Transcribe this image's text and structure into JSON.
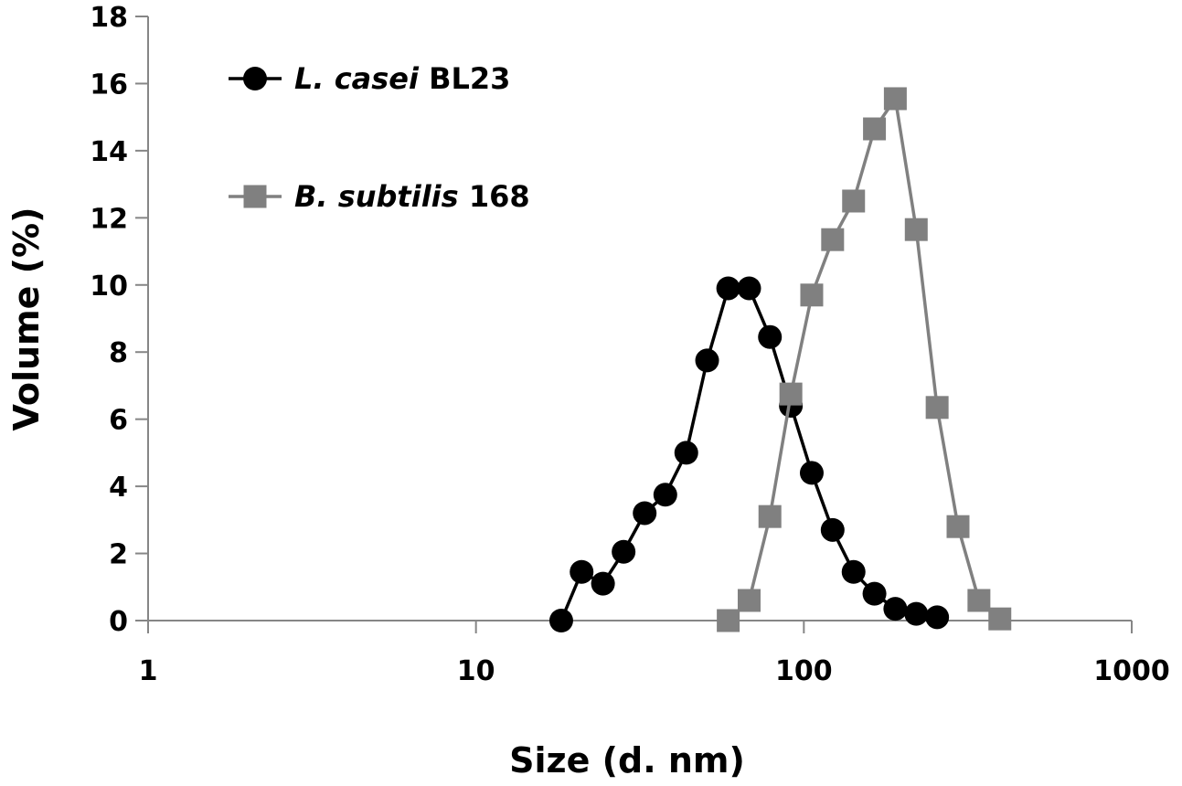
{
  "chart_data": {
    "type": "scatter",
    "title": "",
    "xlabel": "Size (d. nm)",
    "ylabel": "Volume (%)",
    "xscale": "log",
    "xlim": [
      1,
      1000
    ],
    "ylim": [
      0,
      18
    ],
    "x_ticks": [
      1,
      10,
      100,
      1000
    ],
    "x_tick_labels": [
      "1",
      "10",
      "100",
      "1000"
    ],
    "y_ticks": [
      0,
      2,
      4,
      6,
      8,
      10,
      12,
      14,
      16,
      18
    ],
    "y_tick_labels": [
      "0",
      "2",
      "4",
      "6",
      "8",
      "10",
      "12",
      "14",
      "16",
      "18"
    ],
    "grid": false,
    "legend_position": "top-left",
    "series": [
      {
        "name_italic": "L. casei",
        "name_rest": "BL23",
        "marker": "circle",
        "color": "#000000",
        "x": [
          18.2,
          21.0,
          24.4,
          28.2,
          32.7,
          37.8,
          43.8,
          50.7,
          58.8,
          68.1,
          78.8,
          91.3,
          105.7,
          122.4,
          141.8,
          164.2,
          190.1,
          220.2,
          255.0
        ],
        "y": [
          0.0,
          1.45,
          1.1,
          2.05,
          3.2,
          3.75,
          5.0,
          7.75,
          9.9,
          9.9,
          8.45,
          6.4,
          4.4,
          2.7,
          1.45,
          0.8,
          0.35,
          0.2,
          0.1
        ]
      },
      {
        "name_italic": "B. subtilis",
        "name_rest": "168",
        "marker": "square",
        "color": "#808080",
        "x": [
          58.8,
          68.1,
          78.8,
          91.3,
          105.7,
          122.4,
          141.8,
          164.2,
          190.1,
          220.2,
          255.0,
          295.3,
          342.0,
          396.1
        ],
        "y": [
          0.0,
          0.6,
          3.1,
          6.75,
          9.7,
          11.35,
          12.5,
          14.65,
          15.55,
          11.65,
          6.35,
          2.8,
          0.6,
          0.05
        ]
      }
    ]
  }
}
